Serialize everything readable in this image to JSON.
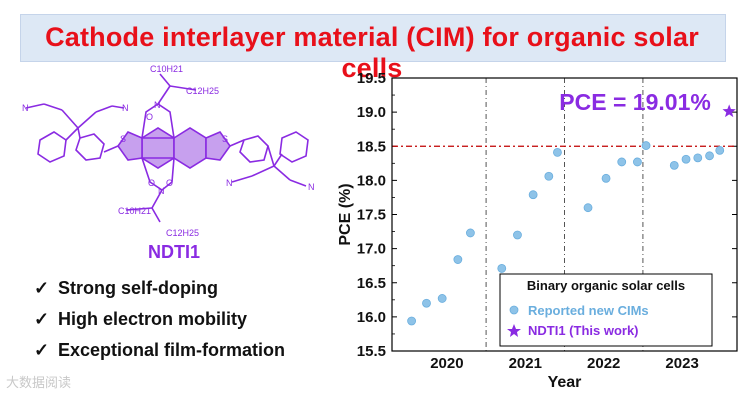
{
  "banner": {
    "title": "Cathode interlayer material (CIM) for organic solar cells"
  },
  "molecule": {
    "name": "NDTI1",
    "labels": {
      "c10_top": "C10H21",
      "c12_top": "C12H25",
      "c10_bottom": "C10H21",
      "c12_bottom": "C12H25",
      "n": "N",
      "o": "O",
      "s": "S"
    }
  },
  "features": [
    {
      "check": "✓",
      "text": "Strong self-doping"
    },
    {
      "check": "✓",
      "text": "High electron mobility"
    },
    {
      "check": "✓",
      "text": "Exceptional film-formation"
    }
  ],
  "watermark": "大数据阅读",
  "colors": {
    "accent": "#e8101a",
    "purple": "#8a2be2",
    "dot": "#8ec3e8",
    "refline": "#c00000"
  },
  "chart_data": {
    "type": "scatter",
    "ylabel": "PCE (%)",
    "xlabel": "Year",
    "ylim": [
      15.5,
      19.5
    ],
    "yticks": [
      "15.5",
      "16.0",
      "16.5",
      "17.0",
      "17.5",
      "18.0",
      "18.5",
      "19.0",
      "19.5"
    ],
    "year_labels": [
      "2020",
      "2021",
      "2022",
      "2023"
    ],
    "xlim": [
      2019.3,
      2023.7
    ],
    "year_dividers": [
      2020.5,
      2021.5,
      2022.5
    ],
    "ref_line": 18.5,
    "annotation": "PCE = 19.01%",
    "legend": {
      "title": "Binary organic solar cells",
      "items": [
        {
          "label": "Reported new CIMs",
          "marker": "dot"
        },
        {
          "label": "NDTI1 (This work)",
          "marker": "star"
        }
      ]
    },
    "series": [
      {
        "name": "Reported new CIMs",
        "x": [
          2019.55,
          2019.74,
          2019.94,
          2020.14,
          2020.3,
          2020.7,
          2020.9,
          2021.1,
          2021.3,
          2021.41,
          2021.8,
          2022.03,
          2022.23,
          2022.43,
          2022.54,
          2022.9,
          2023.05,
          2023.2,
          2023.35,
          2023.48
        ],
        "y": [
          15.94,
          16.2,
          16.27,
          16.84,
          17.23,
          16.71,
          17.2,
          17.79,
          18.06,
          18.41,
          17.6,
          18.03,
          18.27,
          18.27,
          18.51,
          18.22,
          18.31,
          18.33,
          18.36,
          18.44
        ]
      },
      {
        "name": "NDTI1 (This work)",
        "x": [
          2023.6
        ],
        "y": [
          19.01
        ]
      }
    ]
  }
}
